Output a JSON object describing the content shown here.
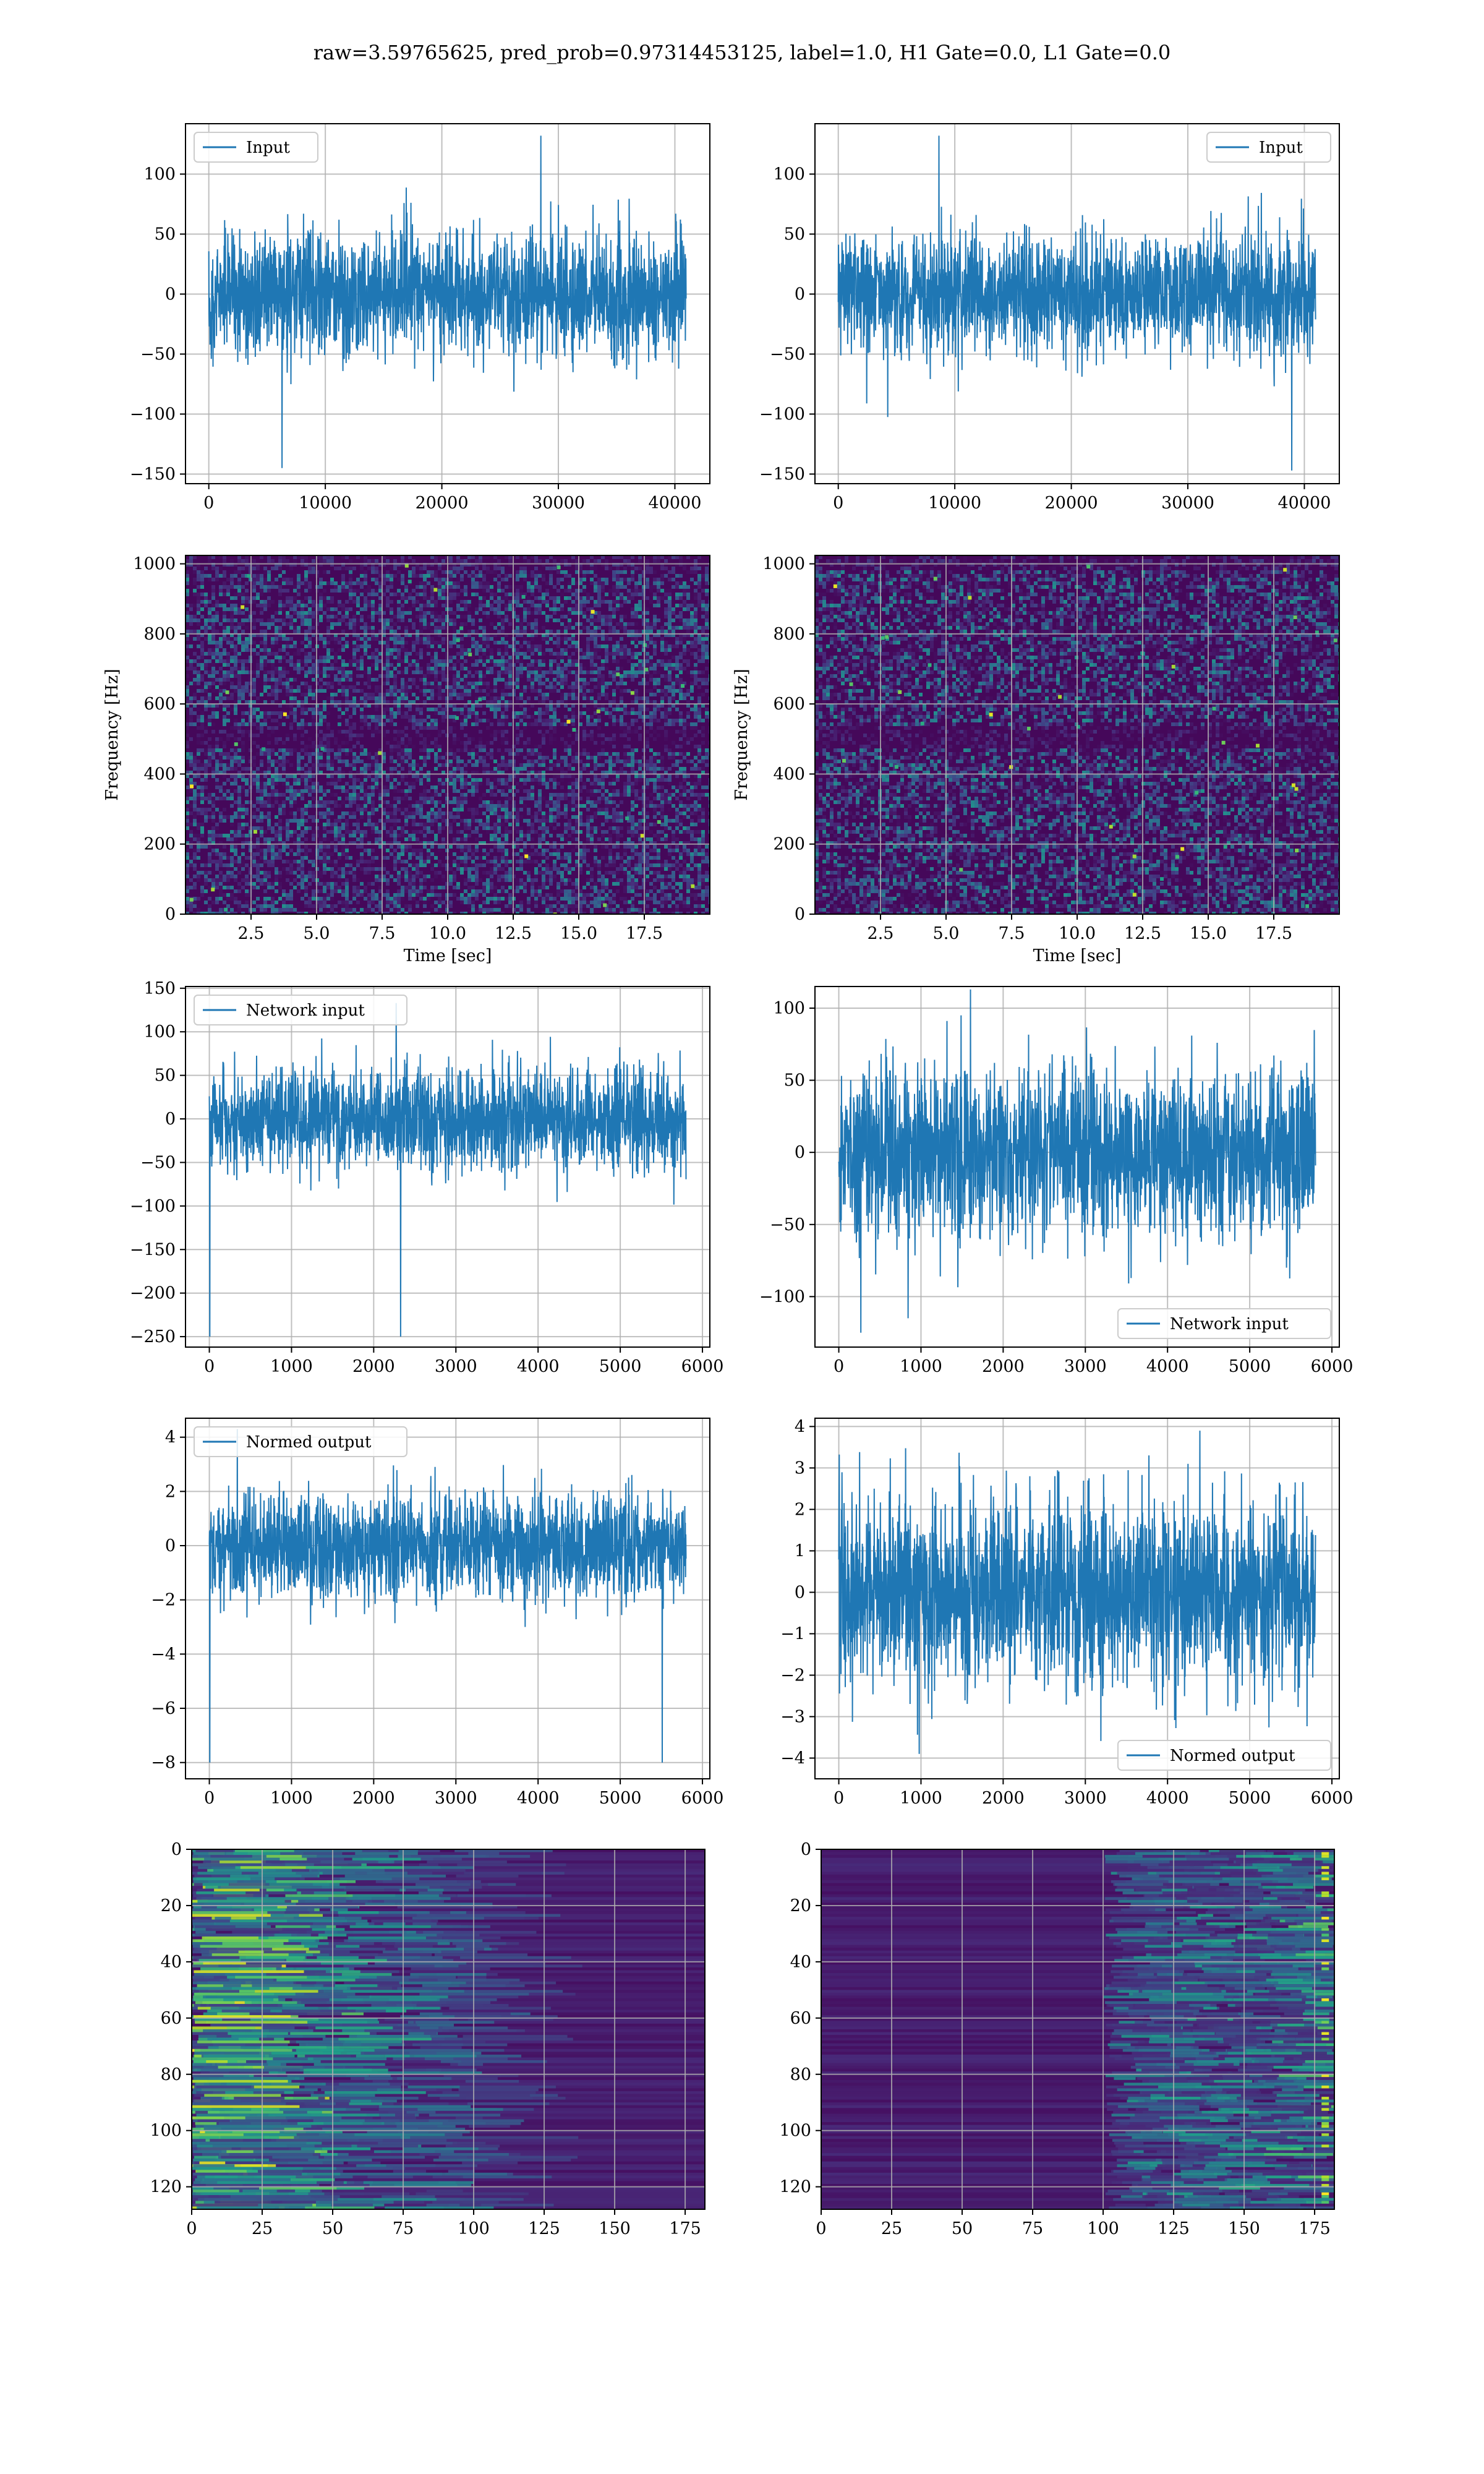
{
  "suptitle": "raw=3.59765625, pred_prob=0.97314453125, label=1.0, H1 Gate=0.0, L1 Gate=0.0",
  "colors": {
    "line": "#1f77b4",
    "viridis_dark": "#440154",
    "viridis_mid": "#21918c",
    "viridis_bright": "#fde725",
    "grid": "#b0b0b0"
  },
  "chart_data": [
    {
      "id": "input-left",
      "type": "line",
      "legend": "top-left",
      "grid": true,
      "xlim": [
        -2000,
        43000
      ],
      "ylim": [
        -158,
        142
      ],
      "xticks": [
        0,
        10000,
        20000,
        30000,
        40000
      ],
      "yticks": [
        -150,
        -100,
        -50,
        0,
        50,
        100
      ],
      "xlabel": "",
      "ylabel": "",
      "series": [
        {
          "name": "Input",
          "x_range": [
            0,
            40960
          ],
          "mean": 0,
          "std": 25,
          "min": -145,
          "max": 132
        }
      ]
    },
    {
      "id": "input-right",
      "type": "line",
      "legend": "top-right",
      "grid": true,
      "xlim": [
        -2000,
        43000
      ],
      "ylim": [
        -158,
        142
      ],
      "xticks": [
        0,
        10000,
        20000,
        30000,
        40000
      ],
      "yticks": [
        -150,
        -100,
        -50,
        0,
        50,
        100
      ],
      "xlabel": "",
      "ylabel": "",
      "series": [
        {
          "name": "Input",
          "x_range": [
            0,
            40960
          ],
          "mean": 0,
          "std": 25,
          "min": -147,
          "max": 132
        }
      ]
    },
    {
      "id": "spec-left",
      "type": "heatmap",
      "grid": true,
      "colormap": "viridis",
      "xlim": [
        0,
        20
      ],
      "ylim": [
        0,
        1024
      ],
      "xticks": [
        2.5,
        5.0,
        7.5,
        10.0,
        12.5,
        15.0,
        17.5
      ],
      "yticks": [
        0,
        200,
        400,
        600,
        800,
        1000
      ],
      "xlabel": "Time [sec]",
      "ylabel": "Frequency [Hz]"
    },
    {
      "id": "spec-right",
      "type": "heatmap",
      "grid": true,
      "colormap": "viridis",
      "xlim": [
        0,
        20
      ],
      "ylim": [
        0,
        1024
      ],
      "xticks": [
        2.5,
        5.0,
        7.5,
        10.0,
        12.5,
        15.0,
        17.5
      ],
      "yticks": [
        0,
        200,
        400,
        600,
        800,
        1000
      ],
      "xlabel": "Time [sec]",
      "ylabel": "Frequency [Hz]"
    },
    {
      "id": "net-left",
      "type": "line",
      "legend": "top-left",
      "grid": true,
      "xlim": [
        -290,
        6090
      ],
      "ylim": [
        -262,
        152
      ],
      "xticks": [
        0,
        1000,
        2000,
        3000,
        4000,
        5000,
        6000
      ],
      "yticks": [
        -250,
        -200,
        -150,
        -100,
        -50,
        0,
        50,
        100,
        150
      ],
      "xlabel": "",
      "ylabel": "",
      "series": [
        {
          "name": "Network input",
          "x_range": [
            0,
            5800
          ],
          "mean": 0,
          "std": 30,
          "min": -250,
          "max": 133
        }
      ]
    },
    {
      "id": "net-right",
      "type": "line",
      "legend": "lower-right",
      "grid": true,
      "xlim": [
        -290,
        6090
      ],
      "ylim": [
        -135,
        115
      ],
      "xticks": [
        0,
        1000,
        2000,
        3000,
        4000,
        5000,
        6000
      ],
      "yticks": [
        -100,
        -50,
        0,
        50,
        100
      ],
      "xlabel": "",
      "ylabel": "",
      "series": [
        {
          "name": "Network input",
          "x_range": [
            0,
            5800
          ],
          "mean": 0,
          "std": 30,
          "min": -125,
          "max": 113
        }
      ]
    },
    {
      "id": "norm-left",
      "type": "line",
      "legend": "top-left",
      "grid": true,
      "xlim": [
        -290,
        6090
      ],
      "ylim": [
        -8.6,
        4.7
      ],
      "xticks": [
        0,
        1000,
        2000,
        3000,
        4000,
        5000,
        6000
      ],
      "yticks": [
        -8,
        -6,
        -4,
        -2,
        0,
        2,
        4
      ],
      "xlabel": "",
      "ylabel": "",
      "series": [
        {
          "name": "Normed output",
          "x_range": [
            0,
            5800
          ],
          "mean": 0,
          "std": 1,
          "min": -8.0,
          "max": 4.3
        }
      ]
    },
    {
      "id": "norm-right",
      "type": "line",
      "legend": "lower-right",
      "grid": true,
      "xlim": [
        -290,
        6090
      ],
      "ylim": [
        -4.5,
        4.2
      ],
      "xticks": [
        0,
        1000,
        2000,
        3000,
        4000,
        5000,
        6000
      ],
      "yticks": [
        -4,
        -3,
        -2,
        -1,
        0,
        1,
        2,
        3,
        4
      ],
      "xlabel": "",
      "ylabel": "",
      "series": [
        {
          "name": "Normed output",
          "x_range": [
            0,
            5800
          ],
          "mean": 0,
          "std": 1.1,
          "min": -3.9,
          "max": 3.9
        }
      ]
    },
    {
      "id": "feat-left",
      "type": "heatmap",
      "grid": true,
      "colormap": "viridis",
      "xlim": [
        0,
        182
      ],
      "ylim": [
        128,
        0
      ],
      "xticks": [
        0,
        25,
        50,
        75,
        100,
        125,
        150,
        175
      ],
      "yticks": [
        0,
        20,
        40,
        60,
        80,
        100,
        120
      ],
      "xlabel": "",
      "ylabel": "",
      "activity": "bright at low x, fading to right"
    },
    {
      "id": "feat-right",
      "type": "heatmap",
      "grid": true,
      "colormap": "viridis",
      "xlim": [
        0,
        182
      ],
      "ylim": [
        128,
        0
      ],
      "xticks": [
        0,
        25,
        50,
        75,
        100,
        125,
        150,
        175
      ],
      "yticks": [
        0,
        20,
        40,
        60,
        80,
        100,
        120
      ],
      "xlabel": "",
      "ylabel": "",
      "activity": "dark at low x, bright near x=175"
    }
  ]
}
